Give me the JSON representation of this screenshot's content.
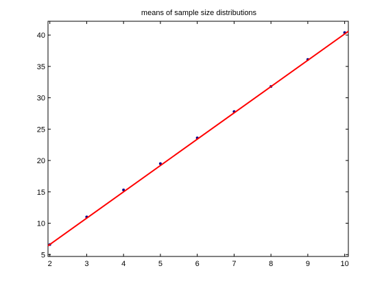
{
  "chart_data": {
    "type": "line",
    "title": "means of sample size distributions",
    "xlabel": "",
    "ylabel": "",
    "xlim": [
      1.95,
      10.1
    ],
    "ylim": [
      4.7,
      42.2
    ],
    "xticks": [
      2,
      3,
      4,
      5,
      6,
      7,
      8,
      9,
      10
    ],
    "yticks": [
      5,
      10,
      15,
      20,
      25,
      30,
      35,
      40
    ],
    "grid": false,
    "legend": "none",
    "series": [
      {
        "kind": "scatter",
        "color": "#00008b",
        "x": [
          2,
          3,
          4,
          5,
          6,
          7,
          8,
          9,
          10
        ],
        "y": [
          6.6,
          11.0,
          15.3,
          19.5,
          23.6,
          27.8,
          31.8,
          36.1,
          40.4
        ]
      },
      {
        "kind": "line",
        "color": "#ff0000",
        "x": [
          1.95,
          10.1
        ],
        "y": [
          6.4,
          40.6
        ]
      }
    ]
  }
}
